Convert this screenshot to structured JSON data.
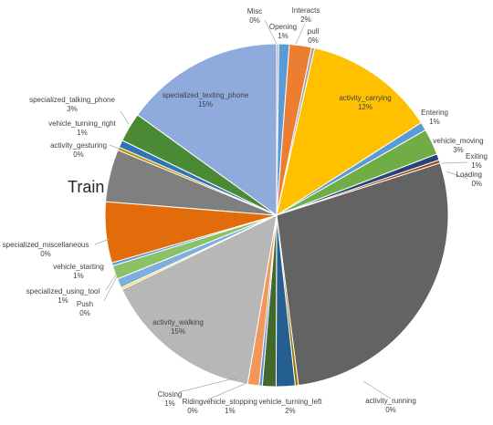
{
  "chart_data": {
    "type": "pie",
    "title": "Train",
    "start_angle_deg": 0,
    "direction": "clockwise",
    "slices": [
      {
        "label": "Misc",
        "pct_label": "0%",
        "value": 0.2,
        "color": "#a5a5a5",
        "show": true
      },
      {
        "label": "Opening",
        "pct_label": "1%",
        "value": 1.0,
        "color": "#5b9bd5",
        "show": true
      },
      {
        "label": "Interacts",
        "pct_label": "2%",
        "value": 2.1,
        "color": "#ed7d31",
        "show": true
      },
      {
        "label": "pull",
        "pct_label": "0%",
        "value": 0.3,
        "color": "#a5a5a5",
        "show": true
      },
      {
        "label": "activity_carrying",
        "pct_label": "12%",
        "value": 12.5,
        "color": "#ffc000",
        "show": true
      },
      {
        "label": "Entering",
        "pct_label": "1%",
        "value": 0.8,
        "color": "#5b9bd5",
        "show": true
      },
      {
        "label": "vehicle_moving",
        "pct_label": "3%",
        "value": 2.5,
        "color": "#70ad47",
        "show": true
      },
      {
        "label": "Exiting",
        "pct_label": "1%",
        "value": 0.6,
        "color": "#264478",
        "show": true
      },
      {
        "label": "Loading",
        "pct_label": "0%",
        "value": 0.3,
        "color": "#9e480e",
        "show": true
      },
      {
        "label": "",
        "pct_label": "",
        "value": 28.2,
        "color": "#636363",
        "show": false
      },
      {
        "label": "activity_running",
        "pct_label": "0%",
        "value": 0.3,
        "color": "#997300",
        "show": true
      },
      {
        "label": "vehicle_turning_left",
        "pct_label": "2%",
        "value": 1.8,
        "color": "#255e91",
        "show": true
      },
      {
        "label": "vehicle_stopping",
        "pct_label": "1%",
        "value": 1.3,
        "color": "#43682b",
        "show": true
      },
      {
        "label": "Riding",
        "pct_label": "0%",
        "value": 0.3,
        "color": "#698ed0",
        "show": true
      },
      {
        "label": "Closing",
        "pct_label": "1%",
        "value": 1.1,
        "color": "#f1975a",
        "show": true
      },
      {
        "label": "activity_walking",
        "pct_label": "15%",
        "value": 15.3,
        "color": "#b7b7b7",
        "show": true
      },
      {
        "label": "Push",
        "pct_label": "0%",
        "value": 0.2,
        "color": "#ffcd33",
        "show": true
      },
      {
        "label": "specialized_using_tool",
        "pct_label": "1%",
        "value": 0.9,
        "color": "#7cafdd",
        "show": true
      },
      {
        "label": "vehicle_starting",
        "pct_label": "1%",
        "value": 1.3,
        "color": "#8cc168",
        "show": true
      },
      {
        "label": "specialized_miscellaneous",
        "pct_label": "0%",
        "value": 0.3,
        "color": "#5b9bd5",
        "show": true
      },
      {
        "label": "",
        "pct_label": "",
        "value": 5.8,
        "color": "#e36c0a",
        "show": false
      },
      {
        "label": "",
        "pct_label": "",
        "value": 5.0,
        "color": "#7f7f7f",
        "show": false
      },
      {
        "label": "activity_gesturing",
        "pct_label": "0%",
        "value": 0.3,
        "color": "#bf9000",
        "show": true
      },
      {
        "label": "vehicle_turning_right",
        "pct_label": "1%",
        "value": 0.7,
        "color": "#2e75b6",
        "show": true
      },
      {
        "label": "specialized_talking_phone",
        "pct_label": "3%",
        "value": 2.8,
        "color": "#4b8a35",
        "show": true
      },
      {
        "label": "specialized_texting_phone",
        "pct_label": "15%",
        "value": 15.2,
        "color": "#8faadc",
        "show": true
      }
    ]
  }
}
